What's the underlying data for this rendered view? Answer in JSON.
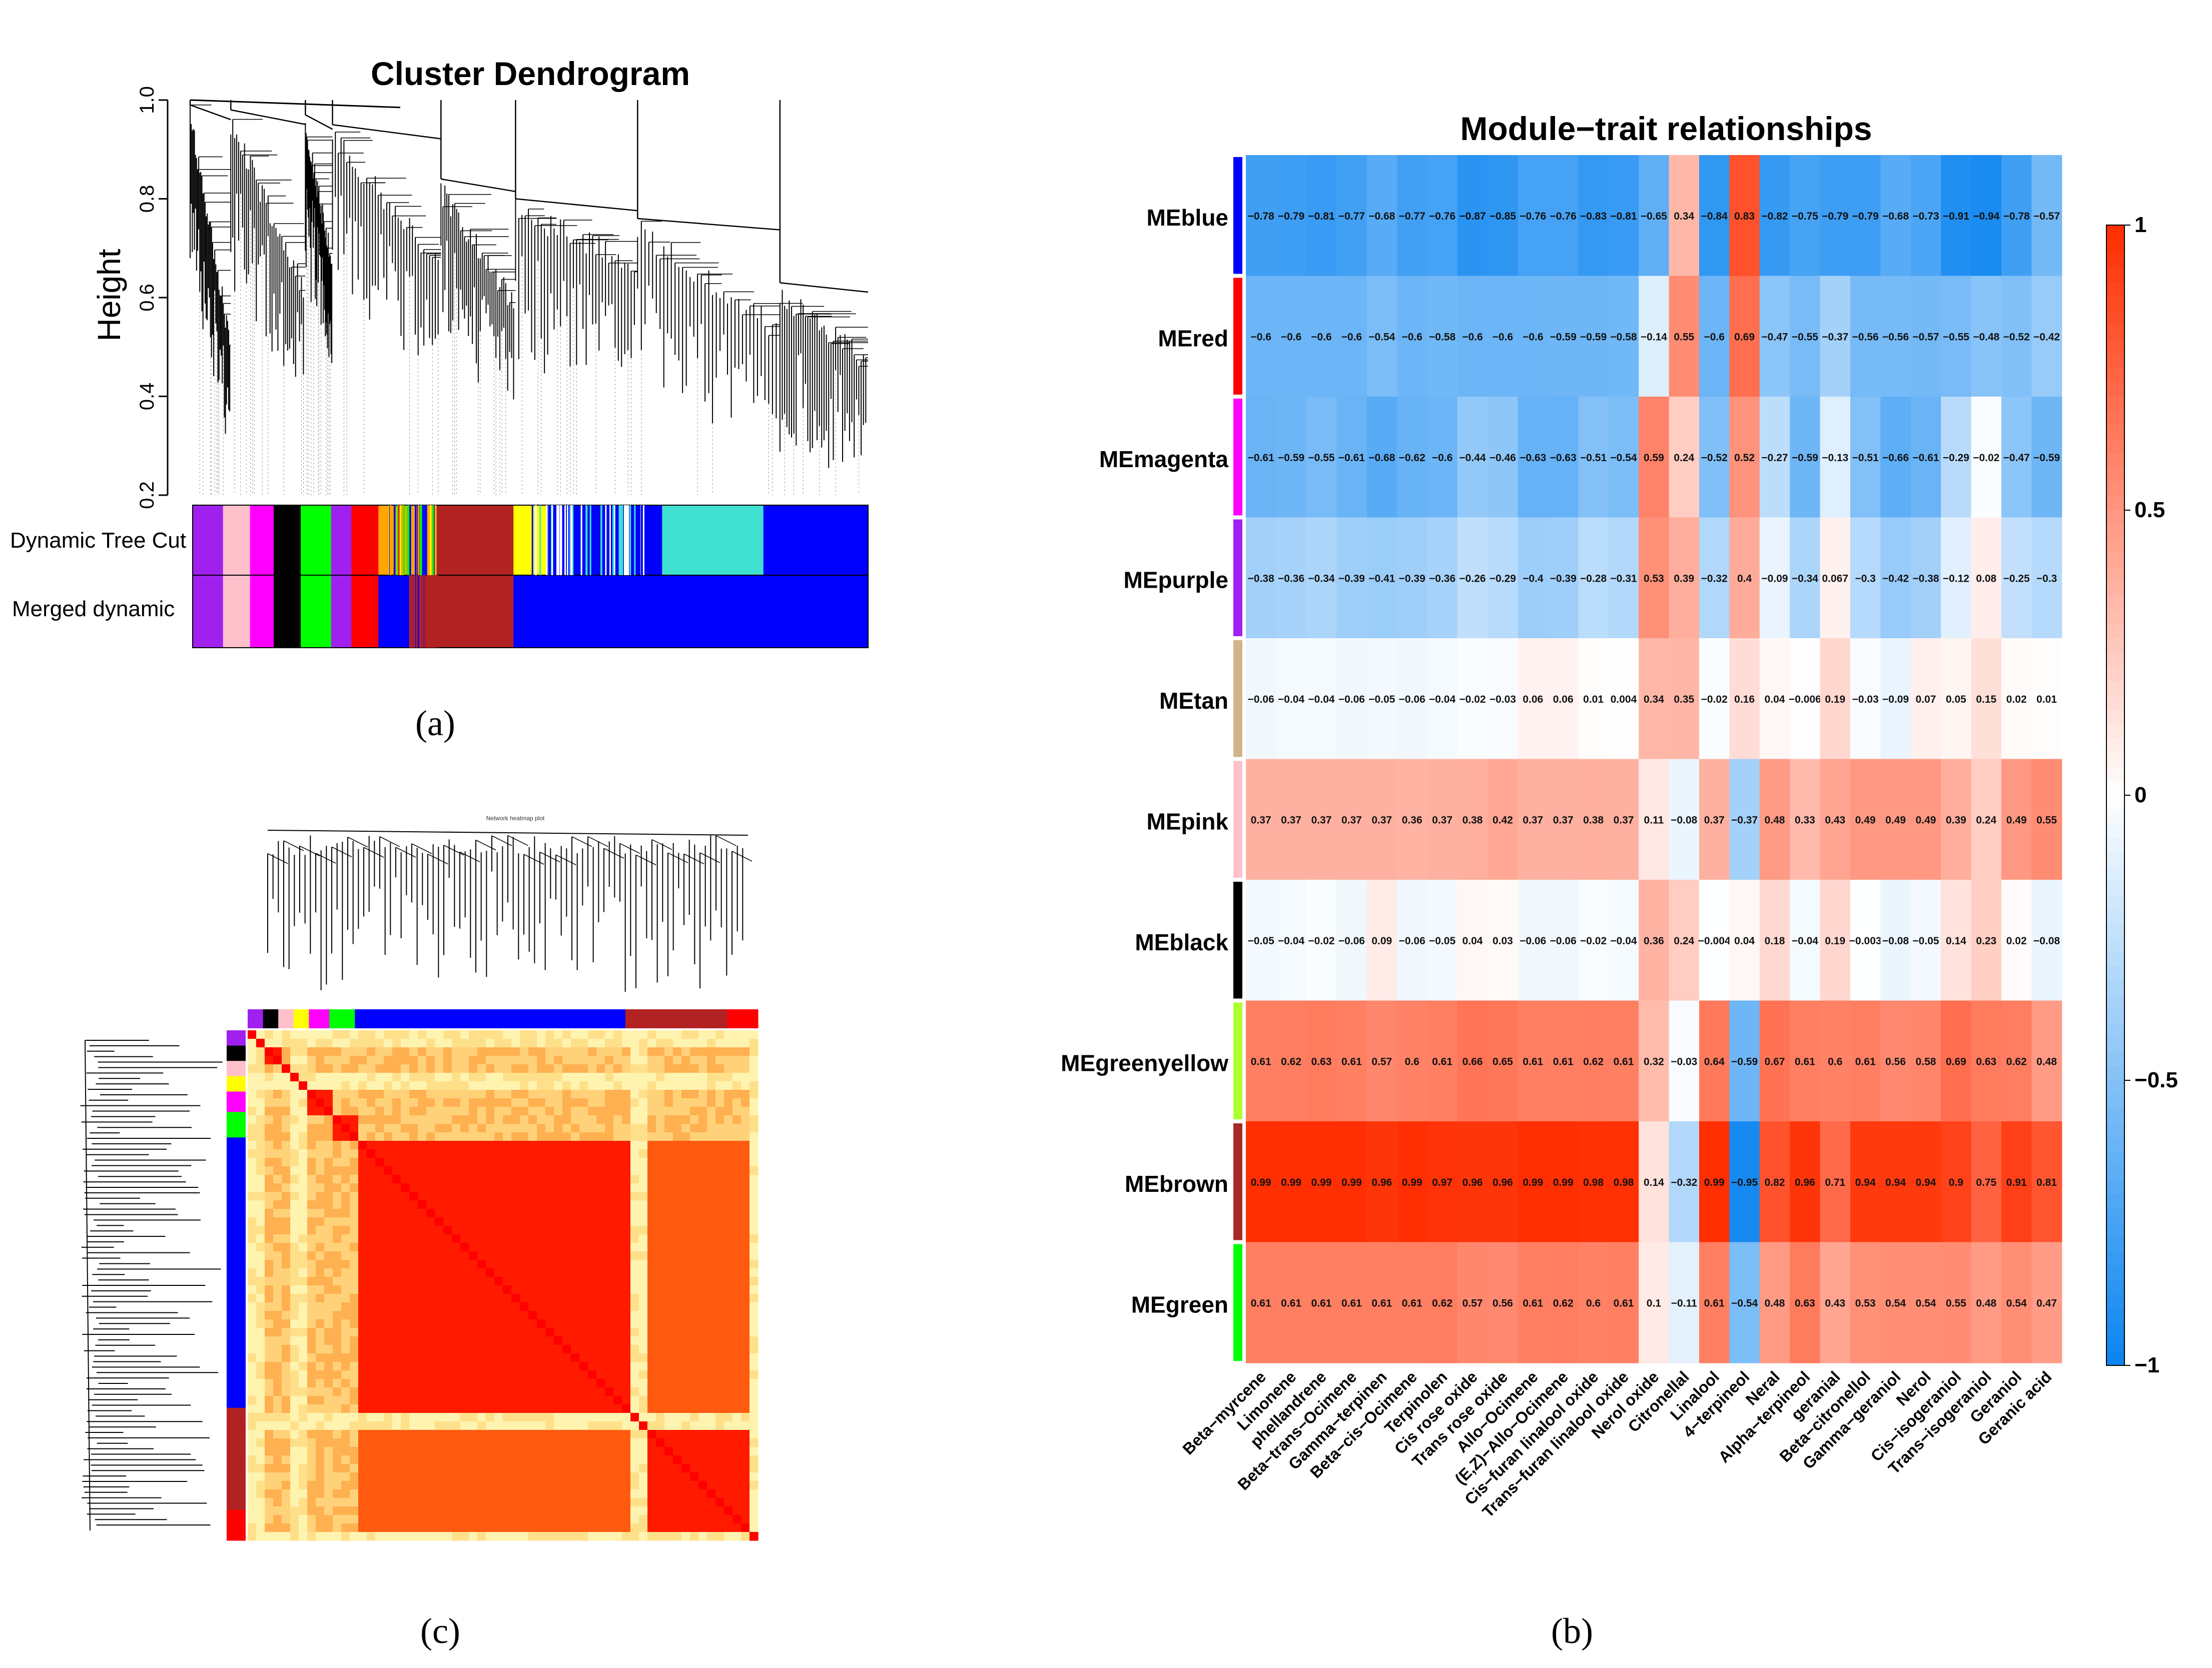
{
  "panel_a": {
    "title": "Cluster Dendrogram",
    "ylabel": "Height",
    "yticks": [
      "0.2",
      "0.4",
      "0.6",
      "0.8",
      "1.0"
    ],
    "row_labels": [
      "Dynamic Tree Cut",
      "Merged dynamic"
    ],
    "label": "(a)",
    "dynamic_colors": [
      "#a020f0",
      "#ffc0cb",
      "#ff00ff",
      "#000000",
      "#00ff00",
      "#a020f0",
      "#ff0000",
      "#ffa500",
      "#b22222",
      "#ffff00",
      "#0000ff",
      "#40e0d0",
      "#0000ff"
    ],
    "dynamic_widths": [
      0.045,
      0.04,
      0.035,
      0.04,
      0.045,
      0.03,
      0.04,
      0.07,
      0.13,
      0.05,
      0.17,
      0.15,
      0.155
    ],
    "merged_colors": [
      "#a020f0",
      "#ffc0cb",
      "#ff00ff",
      "#000000",
      "#00ff00",
      "#a020f0",
      "#ff0000",
      "#0000ff",
      "#b22222",
      "#0000ff"
    ],
    "merged_widths": [
      0.045,
      0.04,
      0.035,
      0.04,
      0.045,
      0.03,
      0.04,
      0.07,
      0.13,
      0.525
    ]
  },
  "panel_b": {
    "title": "Module−trait relationships",
    "label": "(b)",
    "legend_ticks": [
      "1",
      "0.5",
      "0",
      "−0.5",
      "−1"
    ],
    "colors": {
      "neg": "#0a84f0",
      "mid": "#ffffff",
      "pos": "#ff2d00"
    }
  },
  "panel_c": {
    "title": "Network heatmap plot",
    "label": "(c)"
  },
  "chart_data": [
    {
      "type": "heatmap",
      "title": "Module−trait relationships",
      "rows": [
        "MEblue",
        "MEred",
        "MEmagenta",
        "MEpurple",
        "MEtan",
        "MEpink",
        "MEblack",
        "MEgreenyellow",
        "MEbrown",
        "MEgreen"
      ],
      "row_colors": [
        "#0000ff",
        "#ff0000",
        "#ff00ff",
        "#a020f0",
        "#d2b48c",
        "#ffc0cb",
        "#000000",
        "#adff2f",
        "#a52a2a",
        "#00ff00"
      ],
      "columns": [
        "Beta−myrcene",
        "Limonene",
        "phellandrene",
        "Beta−trans−Ocimene",
        "Gamma−terpinen",
        "Beta−cis−Ocimene",
        "Terpinolen",
        "Cis rose oxide",
        "Trans rose oxide",
        "Allo−Ocimene",
        "(E,Z)−Allo−Ocimene",
        "Cis−furan linalool oxide",
        "Trans−furan linalool oxide",
        "Nerol oxide",
        "Citronellal",
        "Linalool",
        "4−terpineol",
        "Neral",
        "Alpha−terpineol",
        "geranial",
        "Beta−citronellol",
        "Gamma−geraniol",
        "Nerol",
        "Cis−isogeraniol",
        "Trans−isogeraniol",
        "Geraniol",
        "Geranic acid"
      ],
      "values": [
        [
          -0.78,
          -0.79,
          -0.81,
          -0.77,
          -0.68,
          -0.77,
          -0.76,
          -0.87,
          -0.85,
          -0.76,
          -0.76,
          -0.83,
          -0.81,
          -0.65,
          0.34,
          -0.84,
          0.83,
          -0.82,
          -0.75,
          -0.79,
          -0.79,
          -0.68,
          -0.73,
          -0.91,
          -0.94,
          -0.78,
          -0.57
        ],
        [
          -0.6,
          -0.6,
          -0.6,
          -0.6,
          -0.54,
          -0.6,
          -0.58,
          -0.6,
          -0.6,
          -0.6,
          -0.59,
          -0.59,
          -0.58,
          -0.14,
          0.55,
          -0.6,
          0.69,
          -0.47,
          -0.55,
          -0.37,
          -0.56,
          -0.56,
          -0.57,
          -0.55,
          -0.48,
          -0.52,
          -0.42
        ],
        [
          -0.61,
          -0.59,
          -0.55,
          -0.61,
          -0.68,
          -0.62,
          -0.6,
          -0.44,
          -0.46,
          -0.63,
          -0.63,
          -0.51,
          -0.54,
          0.59,
          0.24,
          -0.52,
          0.52,
          -0.27,
          -0.59,
          -0.13,
          -0.51,
          -0.66,
          -0.61,
          -0.29,
          -0.02,
          -0.47,
          -0.59
        ],
        [
          -0.38,
          -0.36,
          -0.34,
          -0.39,
          -0.41,
          -0.39,
          -0.36,
          -0.26,
          -0.29,
          -0.4,
          -0.39,
          -0.28,
          -0.31,
          0.53,
          0.39,
          -0.32,
          0.4,
          -0.09,
          -0.34,
          0.067,
          -0.3,
          -0.42,
          -0.38,
          -0.12,
          0.08,
          -0.25,
          -0.3
        ],
        [
          -0.06,
          -0.04,
          -0.04,
          -0.06,
          -0.05,
          -0.06,
          -0.04,
          -0.02,
          -0.03,
          0.06,
          0.06,
          0.01,
          0.004,
          0.34,
          0.35,
          -0.02,
          0.16,
          0.04,
          -0.006,
          0.19,
          -0.03,
          -0.09,
          0.07,
          0.05,
          0.15,
          0.02,
          0.01
        ],
        [
          0.37,
          0.37,
          0.37,
          0.37,
          0.37,
          0.36,
          0.37,
          0.38,
          0.42,
          0.37,
          0.37,
          0.38,
          0.37,
          0.11,
          -0.08,
          0.37,
          -0.37,
          0.48,
          0.33,
          0.43,
          0.49,
          0.49,
          0.49,
          0.39,
          0.24,
          0.49,
          0.55
        ],
        [
          -0.05,
          -0.04,
          -0.02,
          -0.06,
          0.09,
          -0.06,
          -0.05,
          0.04,
          0.03,
          -0.06,
          -0.06,
          -0.02,
          -0.04,
          0.36,
          0.24,
          -0.004,
          0.04,
          0.18,
          -0.04,
          0.19,
          -0.003,
          -0.08,
          -0.05,
          0.14,
          0.23,
          0.02,
          -0.08
        ],
        [
          0.61,
          0.62,
          0.63,
          0.61,
          0.57,
          0.6,
          0.61,
          0.66,
          0.65,
          0.61,
          0.61,
          0.62,
          0.61,
          0.32,
          -0.03,
          0.64,
          -0.59,
          0.67,
          0.61,
          0.6,
          0.61,
          0.56,
          0.58,
          0.69,
          0.63,
          0.62,
          0.48
        ],
        [
          0.99,
          0.99,
          0.99,
          0.99,
          0.96,
          0.99,
          0.97,
          0.96,
          0.96,
          0.99,
          0.99,
          0.98,
          0.98,
          0.14,
          -0.32,
          0.99,
          -0.95,
          0.82,
          0.96,
          0.71,
          0.94,
          0.94,
          0.94,
          0.9,
          0.75,
          0.91,
          0.81
        ],
        [
          0.61,
          0.61,
          0.61,
          0.61,
          0.61,
          0.61,
          0.62,
          0.57,
          0.56,
          0.61,
          0.62,
          0.6,
          0.61,
          0.1,
          -0.11,
          0.61,
          -0.54,
          0.48,
          0.63,
          0.43,
          0.53,
          0.54,
          0.54,
          0.55,
          0.48,
          0.54,
          0.47
        ]
      ],
      "legend_range": [
        -1,
        1
      ]
    }
  ]
}
